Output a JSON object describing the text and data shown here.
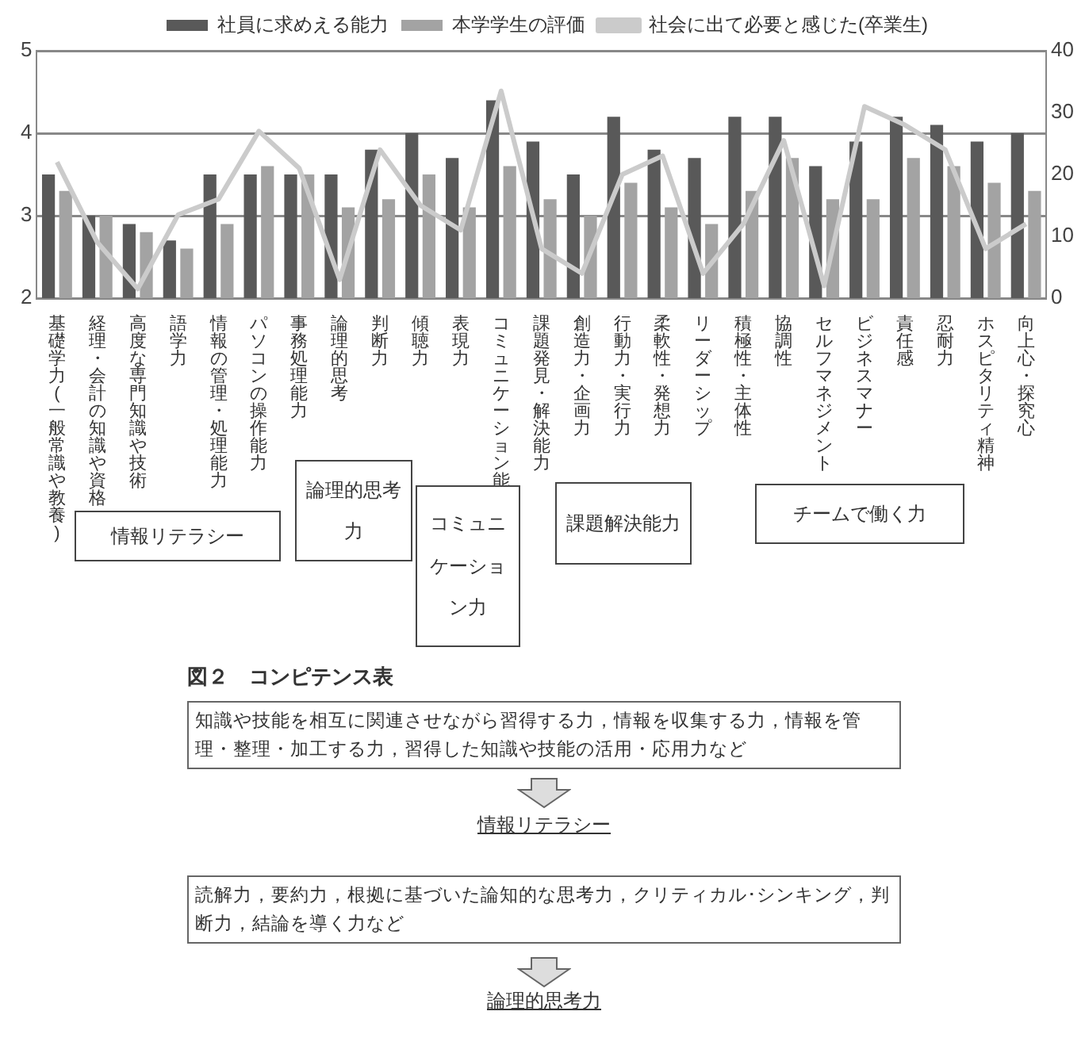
{
  "chart_data": {
    "type": "bar",
    "categories": [
      "基礎学力(一般常識や教養)",
      "経理・会計の知識や資格",
      "高度な専門知識や技術",
      "語学力",
      "情報の管理・処理能力",
      "パソコンの操作能力",
      "事務処理能力",
      "論理的思考",
      "判断力",
      "傾聴力",
      "表現力",
      "コミュニケーション能力",
      "課題発見・解決能力",
      "創造力・企画力",
      "行動力・実行力",
      "柔軟性・発想力",
      "リーダーシップ",
      "積極性・主体性",
      "協調性",
      "セルフマネジメント",
      "ビジネスマナー",
      "責任感",
      "忍耐力",
      "ホスピタリティ精神",
      "向上心・探究心"
    ],
    "series": [
      {
        "name": "社員に求めえる能力",
        "color": "#595959",
        "values": [
          3.5,
          3.0,
          2.9,
          2.7,
          3.5,
          3.5,
          3.5,
          3.5,
          3.8,
          4.0,
          3.7,
          4.4,
          3.9,
          3.5,
          4.2,
          3.8,
          3.7,
          4.2,
          4.2,
          3.6,
          3.9,
          4.2,
          4.1,
          3.9,
          4.0
        ]
      },
      {
        "name": "本学学生の評価",
        "color": "#a3a3a3",
        "values": [
          3.3,
          3.0,
          2.8,
          2.6,
          2.9,
          3.6,
          3.5,
          3.1,
          3.2,
          3.5,
          3.1,
          3.6,
          3.2,
          3.0,
          3.4,
          3.1,
          2.9,
          3.3,
          3.7,
          3.2,
          3.2,
          3.7,
          3.6,
          3.4,
          3.3
        ]
      },
      {
        "name": "社会に出て必要と感じた(卒業生)",
        "color": "#cbcbcb",
        "type": "line",
        "axis": "y2",
        "marker": "none",
        "values": [
          22,
          9,
          1.5,
          13.5,
          16,
          27,
          21,
          3,
          24,
          15,
          11,
          33.5,
          8,
          4,
          20,
          23,
          4,
          12,
          25.5,
          2,
          31,
          28,
          24,
          8,
          12
        ]
      }
    ],
    "ylim": [
      2,
      5
    ],
    "yticks": [
      2,
      3,
      4,
      5
    ],
    "y2lim": [
      0,
      40
    ],
    "y2ticks": [
      0,
      10,
      20,
      30,
      40
    ],
    "grid": "y",
    "legend": "top",
    "annotations": [
      "情報リテラシー",
      "論理的思考力",
      "コミュニケーション力",
      "課題解決能力",
      "チームで働く力",
      "図２　コンピテンス表",
      "知識や技能を相互に関連させながら習得する力，情報を収集する力，情報を管理・整理・加工する力，習得した知識や技能の活用・応用力など",
      "情報リテラシー",
      "読解力，要約力，根拠に基づいた論知的な思考力，クリティカル･シンキング，判断力，結論を導く力など",
      "論理的思考力"
    ]
  }
}
